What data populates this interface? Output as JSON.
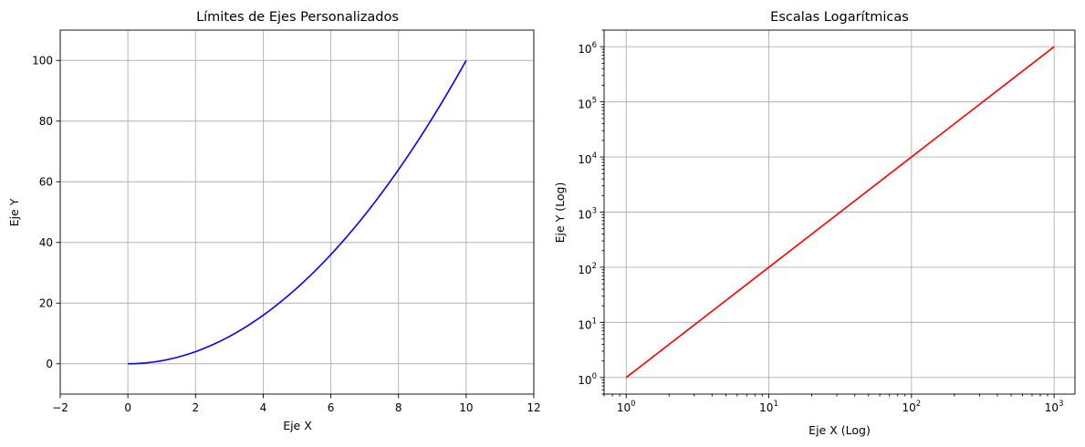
{
  "chart_data": [
    {
      "type": "line",
      "title": "Límites de Ejes Personalizados",
      "xlabel": "Eje X",
      "ylabel": "Eje Y",
      "xlim": [
        -2,
        12
      ],
      "ylim": [
        -10,
        110
      ],
      "xscale": "linear",
      "yscale": "linear",
      "grid": true,
      "x_ticks": [
        "−2",
        "0",
        "2",
        "4",
        "6",
        "8",
        "10",
        "12"
      ],
      "y_ticks": [
        "0",
        "20",
        "40",
        "60",
        "80",
        "100"
      ],
      "series": [
        {
          "color": "#0000ff",
          "x": [
            0,
            1,
            2,
            3,
            4,
            5,
            6,
            7,
            8,
            9,
            10
          ],
          "y": [
            0,
            1,
            4,
            9,
            16,
            25,
            36,
            49,
            64,
            81,
            100
          ]
        }
      ]
    },
    {
      "type": "line",
      "title": "Escalas Logarítmicas",
      "xlabel": "Eje X (Log)",
      "ylabel": "Eje Y (Log)",
      "xlim": [
        0.7,
        1400
      ],
      "ylim": [
        0.5,
        2000000
      ],
      "xscale": "log",
      "yscale": "log",
      "grid": true,
      "x_ticks": [
        {
          "base": "10",
          "exp": "0"
        },
        {
          "base": "10",
          "exp": "1"
        },
        {
          "base": "10",
          "exp": "2"
        },
        {
          "base": "10",
          "exp": "3"
        }
      ],
      "y_ticks": [
        {
          "base": "10",
          "exp": "0"
        },
        {
          "base": "10",
          "exp": "1"
        },
        {
          "base": "10",
          "exp": "2"
        },
        {
          "base": "10",
          "exp": "3"
        },
        {
          "base": "10",
          "exp": "4"
        },
        {
          "base": "10",
          "exp": "5"
        },
        {
          "base": "10",
          "exp": "6"
        }
      ],
      "series": [
        {
          "color": "#ff0000",
          "x": [
            1,
            10,
            100,
            1000
          ],
          "y": [
            1,
            100,
            10000,
            1000000
          ]
        }
      ]
    }
  ]
}
